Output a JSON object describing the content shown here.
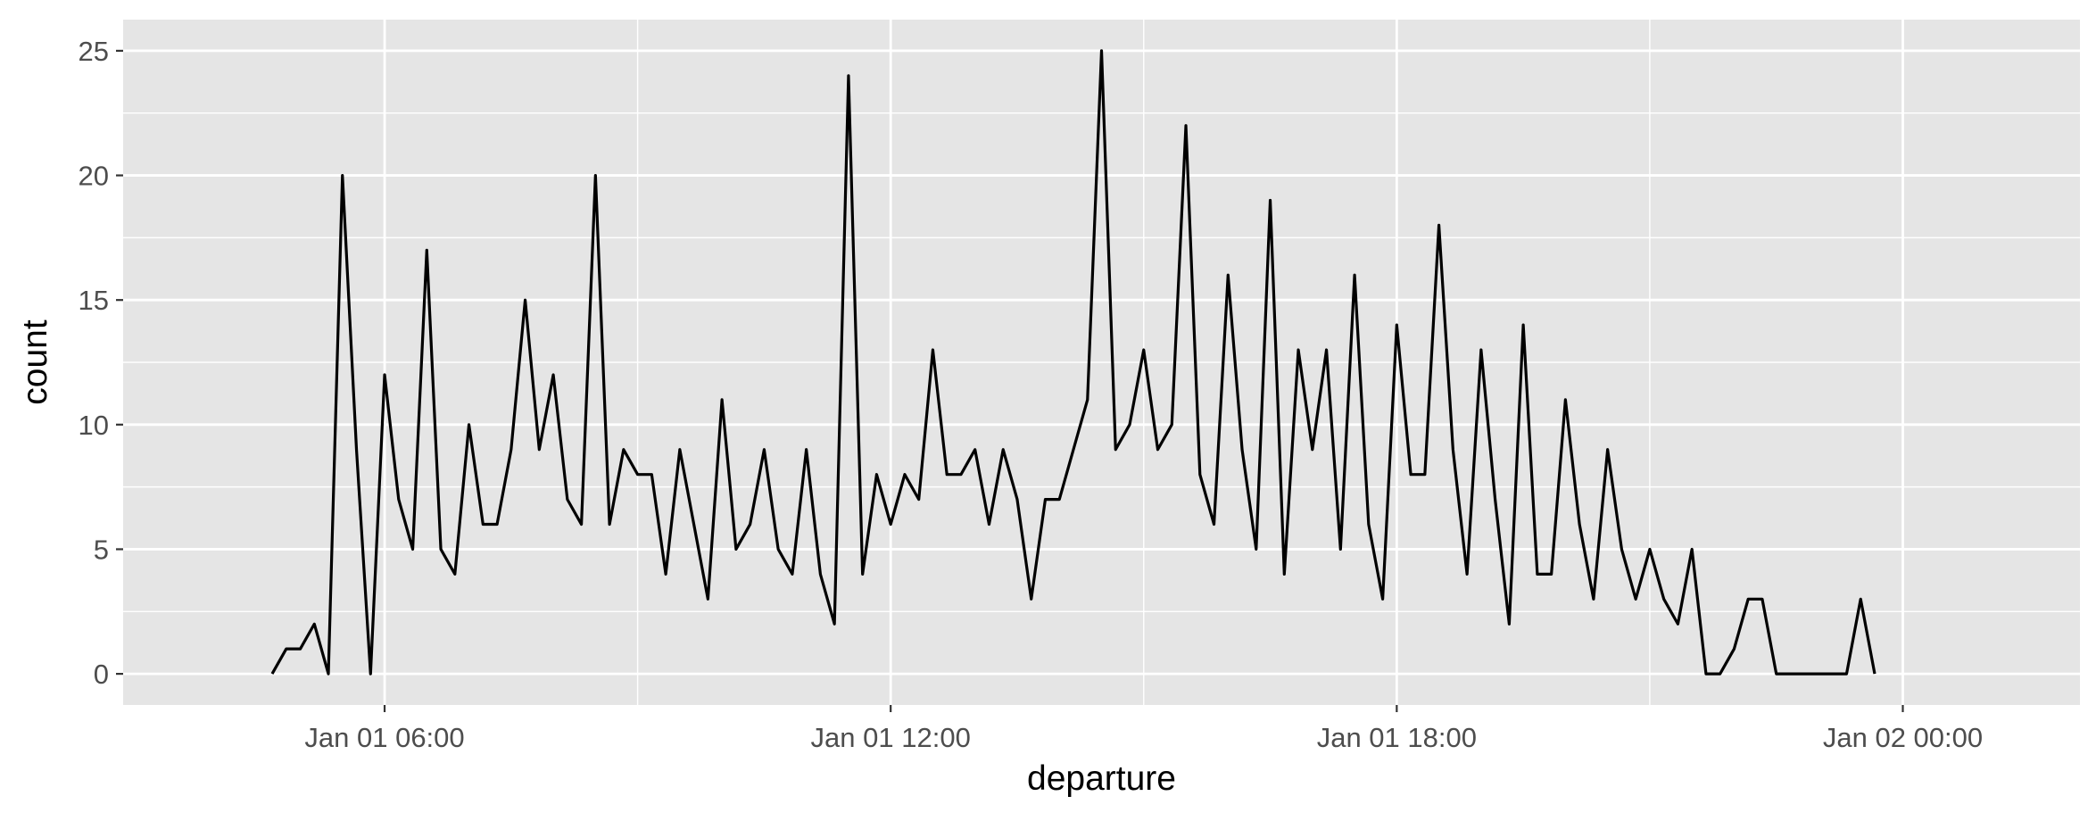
{
  "chart_data": {
    "type": "line",
    "title": "",
    "xlabel": "departure",
    "ylabel": "count",
    "x_start": "Jan 01 04:40",
    "x_step_minutes": 10,
    "xlim": [
      "Jan 01 02:54",
      "Jan 02 02:06"
    ],
    "x_ticks": [
      {
        "label": "Jan 01 06:00",
        "value": "Jan 01 06:00"
      },
      {
        "label": "Jan 01 12:00",
        "value": "Jan 01 12:00"
      },
      {
        "label": "Jan 01 18:00",
        "value": "Jan 01 18:00"
      },
      {
        "label": "Jan 02 00:00",
        "value": "Jan 02 00:00"
      }
    ],
    "ylim": [
      -1.25,
      26.25
    ],
    "y_ticks": [
      0,
      5,
      10,
      15,
      20,
      25
    ],
    "grid": true,
    "series": [
      {
        "values": [
          0,
          1,
          1,
          2,
          0,
          20,
          9,
          0,
          12,
          7,
          5,
          17,
          5,
          4,
          10,
          6,
          6,
          9,
          15,
          9,
          12,
          7,
          6,
          20,
          6,
          9,
          8,
          8,
          4,
          9,
          6,
          3,
          11,
          5,
          6,
          9,
          5,
          4,
          9,
          4,
          2,
          24,
          4,
          8,
          6,
          8,
          7,
          13,
          8,
          8,
          9,
          6,
          9,
          7,
          3,
          7,
          7,
          9,
          11,
          25,
          9,
          10,
          13,
          9,
          10,
          22,
          8,
          6,
          16,
          9,
          5,
          19,
          4,
          13,
          9,
          13,
          5,
          16,
          6,
          3,
          14,
          8,
          8,
          18,
          9,
          4,
          13,
          7,
          2,
          14,
          4,
          4,
          11,
          6,
          3,
          9,
          5,
          3,
          5,
          3,
          2,
          5,
          0,
          0,
          1,
          3,
          3,
          0,
          0,
          0,
          0,
          0,
          0,
          3,
          0
        ]
      }
    ],
    "colors": {
      "panel": "#e5e5e5",
      "grid": "#ffffff",
      "line": "#000000",
      "tick_label": "#4d4d4d",
      "tick_mark": "#333333"
    }
  }
}
